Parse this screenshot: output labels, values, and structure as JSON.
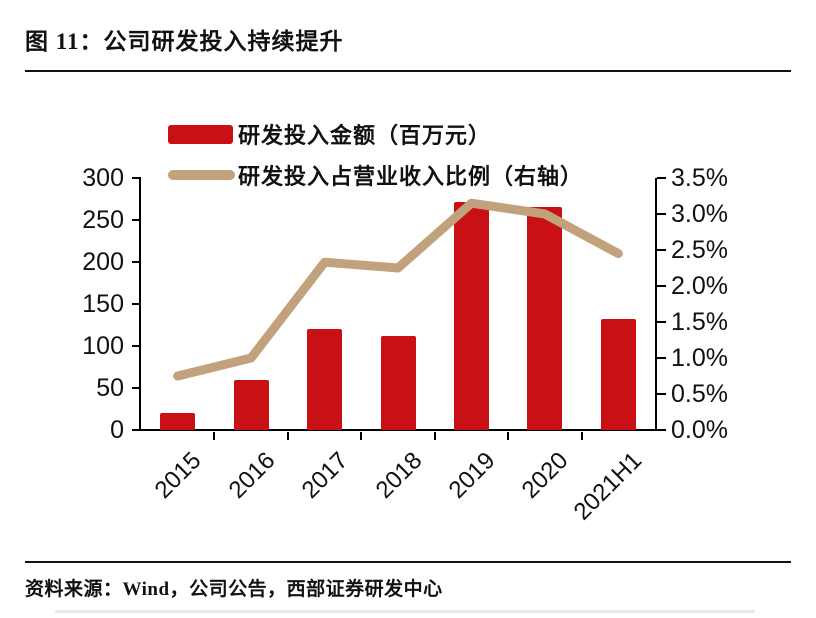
{
  "figure": {
    "title": "图 11：公司研发投入持续提升",
    "source": "资料来源：Wind，公司公告，西部证券研发中心"
  },
  "chart_data": {
    "type": "bar",
    "subtype": "combo-bar-line-dual-axis",
    "categories": [
      "2015",
      "2016",
      "2017",
      "2018",
      "2019",
      "2020",
      "2021H1"
    ],
    "series": [
      {
        "name": "研发投入金额（百万元）",
        "type": "bar",
        "axis": "left",
        "color": "#C81015",
        "values": [
          20,
          60,
          120,
          112,
          272,
          266,
          132
        ]
      },
      {
        "name": "研发投入占营业收入比例（右轴）",
        "type": "line",
        "axis": "right",
        "color": "#C2A17D",
        "values": [
          0.75,
          1.0,
          2.33,
          2.25,
          3.15,
          3.0,
          2.45
        ]
      }
    ],
    "left_axis": {
      "min": 0,
      "max": 300,
      "step": 50,
      "tick_labels": [
        "0",
        "50",
        "100",
        "150",
        "200",
        "250",
        "300"
      ]
    },
    "right_axis": {
      "min": 0,
      "max": 3.5,
      "step": 0.5,
      "tick_labels": [
        "0.0%",
        "0.5%",
        "1.0%",
        "1.5%",
        "2.0%",
        "2.5%",
        "3.0%",
        "3.5%"
      ]
    },
    "legend_position": "top-left",
    "grid": false,
    "axis_color": "#000000"
  }
}
